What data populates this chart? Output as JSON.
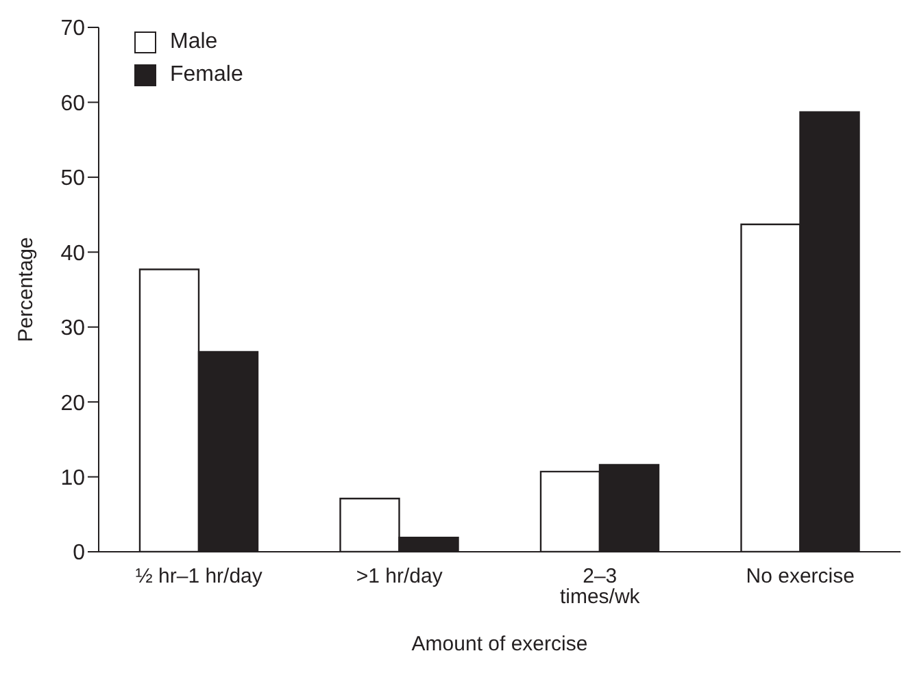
{
  "chart_data": {
    "type": "bar",
    "xlabel": "Amount of exercise",
    "ylabel": "Percentage",
    "categories": [
      "½ hr–1 hr/day",
      ">1 hr/day",
      "2–3 times/wk",
      "No exercise"
    ],
    "series": [
      {
        "name": "Male",
        "color": "#ffffff",
        "values": [
          37.7,
          7.1,
          10.7,
          43.7
        ]
      },
      {
        "name": "Female",
        "color": "#231f20",
        "values": [
          26.7,
          1.9,
          11.6,
          58.7
        ]
      }
    ],
    "ylim": [
      0,
      70
    ],
    "yticks": [
      0,
      10,
      20,
      30,
      40,
      50,
      60,
      70
    ],
    "grid": false,
    "legend": "top left"
  }
}
